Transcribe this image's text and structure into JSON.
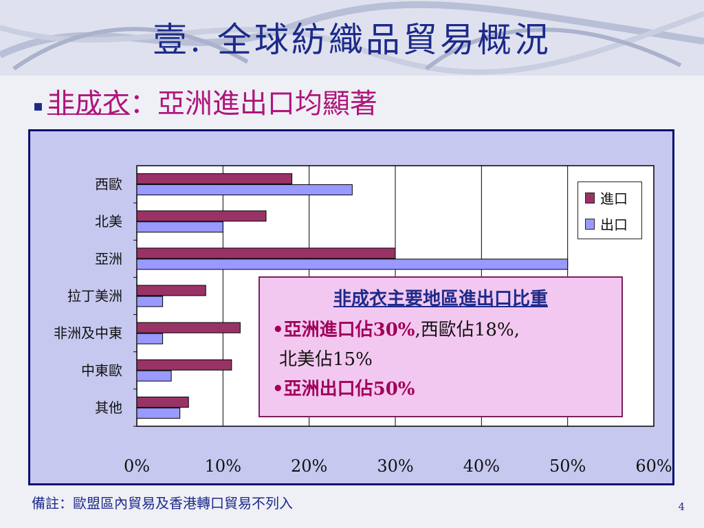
{
  "slide": {
    "title": "壹. 全球紡織品貿易概況",
    "subtitle_bullet": "▪",
    "subtitle_underlined": "非成衣",
    "subtitle_rest": "：亞洲進出口均顯著",
    "note": "備註：歐盟區內貿易及香港轉口貿易不列入",
    "page_number": "4"
  },
  "callout": {
    "heading": "非成衣主要地區進出口比重",
    "line1_bullet": "•",
    "line1_highlight": "亞洲進口佔30%",
    "line1_rest": ",西歐佔18%,",
    "line2": "北美佔15%",
    "line3_bullet": "•",
    "line3_highlight": "亞洲出口佔50%"
  },
  "colors": {
    "import": "#993366",
    "export": "#9999ff",
    "plot_bg": "#ffffff",
    "frame_bg": "#c7c8ef"
  },
  "chart_data": {
    "type": "bar",
    "orientation": "horizontal",
    "categories": [
      "西歐",
      "北美",
      "亞洲",
      "拉丁美洲",
      "非洲及中東",
      "中東歐",
      "其他"
    ],
    "series": [
      {
        "name": "進口",
        "values": [
          18,
          15,
          30,
          8,
          12,
          11,
          6
        ]
      },
      {
        "name": "出口",
        "values": [
          25,
          10,
          50,
          3,
          3,
          4,
          5
        ]
      }
    ],
    "xlim": [
      0,
      60
    ],
    "x_ticks": [
      "0%",
      "10%",
      "20%",
      "30%",
      "40%",
      "50%",
      "60%"
    ],
    "grid": "vertical",
    "legend_position": "top-right"
  }
}
